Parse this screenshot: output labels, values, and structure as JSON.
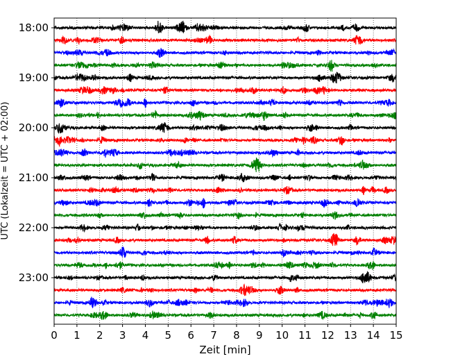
{
  "chart_data": {
    "type": "line",
    "title": "",
    "xlabel": "Zeit  [min]",
    "ylabel": "UTC (Lokalzeit = UTC + 02:00)",
    "xlim": [
      0,
      15
    ],
    "x_ticks": [
      "0",
      "1",
      "2",
      "3",
      "4",
      "5",
      "6",
      "7",
      "8",
      "9",
      "10",
      "11",
      "12",
      "13",
      "14",
      "15"
    ],
    "y_ticks": [
      "18:00",
      "19:00",
      "20:00",
      "21:00",
      "22:00",
      "23:00"
    ],
    "row_interval_minutes": 15,
    "start_time": "18:00",
    "end_time": "23:45",
    "grid": "vertical dotted lines at each minute",
    "colors": [
      "#000000",
      "#ff0000",
      "#0000ff",
      "#008000"
    ],
    "traces": [
      {
        "time": "18:00",
        "color": "#000000"
      },
      {
        "time": "18:15",
        "color": "#ff0000"
      },
      {
        "time": "18:30",
        "color": "#0000ff"
      },
      {
        "time": "18:45",
        "color": "#008000"
      },
      {
        "time": "19:00",
        "color": "#000000"
      },
      {
        "time": "19:15",
        "color": "#ff0000"
      },
      {
        "time": "19:30",
        "color": "#0000ff"
      },
      {
        "time": "19:45",
        "color": "#008000"
      },
      {
        "time": "20:00",
        "color": "#000000"
      },
      {
        "time": "20:15",
        "color": "#ff0000"
      },
      {
        "time": "20:30",
        "color": "#0000ff"
      },
      {
        "time": "20:45",
        "color": "#008000"
      },
      {
        "time": "21:00",
        "color": "#000000"
      },
      {
        "time": "21:15",
        "color": "#ff0000"
      },
      {
        "time": "21:30",
        "color": "#0000ff"
      },
      {
        "time": "21:45",
        "color": "#008000"
      },
      {
        "time": "22:00",
        "color": "#000000"
      },
      {
        "time": "22:15",
        "color": "#ff0000"
      },
      {
        "time": "22:30",
        "color": "#0000ff"
      },
      {
        "time": "22:45",
        "color": "#008000"
      },
      {
        "time": "23:00",
        "color": "#000000"
      },
      {
        "time": "23:15",
        "color": "#ff0000"
      },
      {
        "time": "23:30",
        "color": "#0000ff"
      },
      {
        "time": "23:45",
        "color": "#008000"
      }
    ]
  }
}
